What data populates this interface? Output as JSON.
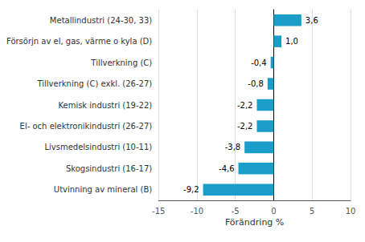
{
  "chart_data": {
    "type": "bar",
    "orientation": "horizontal",
    "xlabel": "Förändring %",
    "categories": [
      "Utvinning av mineral (B)",
      "Skogsindustri (16-17)",
      "Livsmedelsindustri (10-11)",
      "El- och elektronikindustri (26-27)",
      "Kemisk industri (19-22)",
      "Tillverkning (C) exkl. (26-27)",
      "Tillverkning (C)",
      "Försörjn av el, gas, värme o kyla (D)",
      "Metallindustri (24-30, 33)"
    ],
    "values": [
      -9.2,
      -4.6,
      -3.8,
      -2.2,
      -2.2,
      -0.8,
      -0.4,
      1.0,
      3.6
    ],
    "value_labels": [
      "-9,2",
      "-4,6",
      "-3,8",
      "-2,2",
      "-2,2",
      "-0,8",
      "-0,4",
      "1,0",
      "3,6"
    ],
    "data_labels": true,
    "color": "#1a9ec9",
    "xlim": [
      -15,
      10
    ],
    "xticks": [
      -15,
      -10,
      -5,
      0,
      5,
      10
    ],
    "grid": true
  }
}
